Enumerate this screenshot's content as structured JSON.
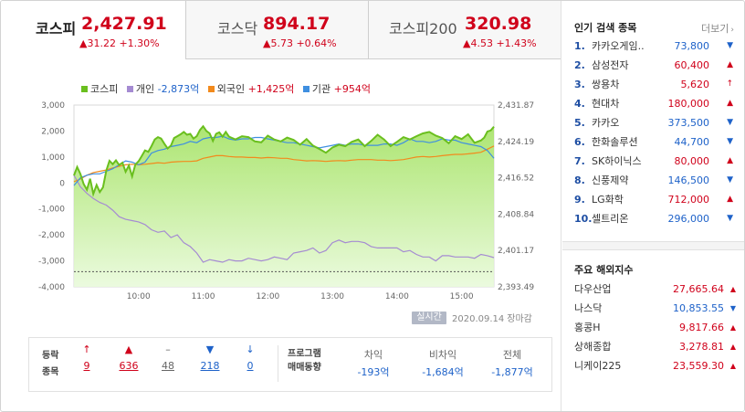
{
  "tabs": [
    {
      "name": "코스피",
      "price": "2,427.91",
      "change": "▲31.22 +1.30%"
    },
    {
      "name": "코스닥",
      "price": "894.17",
      "change": "▲5.73 +0.64%"
    },
    {
      "name": "코스피200",
      "price": "320.98",
      "change": "▲4.53 +1.43%"
    }
  ],
  "legend": [
    {
      "name": "코스피",
      "value": "",
      "color": "#6abf1e"
    },
    {
      "name": "개인",
      "value": "-2,873억",
      "color": "#a58bd2",
      "tone": "neg"
    },
    {
      "name": "외국인",
      "value": "+1,425억",
      "color": "#f28a1c",
      "tone": "pos"
    },
    {
      "name": "기관",
      "value": "+954억",
      "color": "#3f8fe0",
      "tone": "pos"
    }
  ],
  "chart_data": {
    "type": "line",
    "left_axis": {
      "ticks": [
        "3,000",
        "2,000",
        "1,000",
        "0",
        "-1,000",
        "-2,000",
        "-3,000",
        "-4,000"
      ],
      "range": [
        -4000,
        3000
      ]
    },
    "right_axis": {
      "ticks": [
        "2,431.87",
        "2,424.19",
        "2,416.52",
        "2,408.84",
        "2,401.17",
        "2,393.49"
      ],
      "range": [
        2393.49,
        2431.87
      ]
    },
    "x_ticks": [
      "10:00",
      "11:00",
      "12:00",
      "13:00",
      "14:00",
      "15:00"
    ],
    "reference_line": 2396.69,
    "colors": {
      "index": "#6abf1e",
      "individual": "#a58bd2",
      "foreign": "#f28a1c",
      "institution": "#3f8fe0"
    },
    "series": [
      {
        "name": "코스피",
        "axis": "right",
        "times": [
          9.0,
          9.05,
          9.1,
          9.15,
          9.2,
          9.25,
          9.3,
          9.35,
          9.4,
          9.45,
          9.5,
          9.55,
          9.6,
          9.65,
          9.7,
          9.75,
          9.8,
          9.85,
          9.9,
          9.95,
          10.0,
          10.05,
          10.1,
          10.15,
          10.2,
          10.25,
          10.3,
          10.35,
          10.4,
          10.45,
          10.5,
          10.55,
          10.6,
          10.65,
          10.7,
          10.75,
          10.8,
          10.85,
          10.9,
          10.95,
          11.0,
          11.05,
          11.1,
          11.15,
          11.2,
          11.25,
          11.3,
          11.35,
          11.4,
          11.5,
          11.6,
          11.7,
          11.8,
          11.9,
          12.0,
          12.1,
          12.2,
          12.3,
          12.4,
          12.5,
          12.6,
          12.7,
          12.8,
          12.9,
          13.0,
          13.1,
          13.2,
          13.3,
          13.4,
          13.5,
          13.6,
          13.7,
          13.8,
          13.9,
          14.0,
          14.1,
          14.2,
          14.3,
          14.4,
          14.5,
          14.6,
          14.7,
          14.8,
          14.9,
          15.0,
          15.1,
          15.2,
          15.3,
          15.35,
          15.4,
          15.45,
          15.5
        ],
        "values": [
          2417.0,
          2418.8,
          2417.3,
          2415.2,
          2414.0,
          2416.3,
          2413.1,
          2415.0,
          2413.5,
          2414.5,
          2418.0,
          2420.1,
          2419.4,
          2420.2,
          2419.2,
          2419.7,
          2417.8,
          2419.1,
          2416.8,
          2419.3,
          2420.0,
          2421.1,
          2422.3,
          2422.0,
          2423.2,
          2424.6,
          2425.1,
          2424.8,
          2423.7,
          2422.7,
          2423.3,
          2424.9,
          2425.3,
          2425.7,
          2426.2,
          2425.6,
          2425.8,
          2424.8,
          2425.3,
          2426.6,
          2427.4,
          2426.4,
          2425.9,
          2424.3,
          2425.8,
          2426.1,
          2425.2,
          2426.2,
          2425.2,
          2424.6,
          2425.3,
          2425.1,
          2424.2,
          2424.0,
          2425.4,
          2424.6,
          2424.2,
          2425.0,
          2424.5,
          2423.5,
          2424.7,
          2423.3,
          2422.6,
          2421.8,
          2422.9,
          2423.5,
          2423.2,
          2424.1,
          2424.6,
          2423.2,
          2424.3,
          2425.6,
          2424.6,
          2423.2,
          2424.1,
          2425.1,
          2424.6,
          2425.3,
          2425.9,
          2426.2,
          2425.4,
          2424.9,
          2423.8,
          2425.3,
          2424.7,
          2425.7,
          2423.9,
          2424.4,
          2425.0,
          2426.3,
          2426.5,
          2427.3
        ]
      },
      {
        "name": "개인",
        "axis": "left",
        "times": [
          9.0,
          9.1,
          9.2,
          9.3,
          9.4,
          9.5,
          9.6,
          9.7,
          9.8,
          9.9,
          10.0,
          10.1,
          10.2,
          10.3,
          10.4,
          10.5,
          10.6,
          10.7,
          10.8,
          10.9,
          11.0,
          11.1,
          11.2,
          11.3,
          11.4,
          11.5,
          11.6,
          11.7,
          11.8,
          11.9,
          12.0,
          12.1,
          12.2,
          12.3,
          12.4,
          12.5,
          12.6,
          12.7,
          12.8,
          12.9,
          13.0,
          13.1,
          13.2,
          13.3,
          13.4,
          13.5,
          13.6,
          13.7,
          13.8,
          13.9,
          14.0,
          14.1,
          14.2,
          14.3,
          14.4,
          14.5,
          14.6,
          14.7,
          14.8,
          14.9,
          15.0,
          15.1,
          15.2,
          15.3,
          15.4,
          15.5
        ],
        "values": [
          300,
          -150,
          -400,
          -600,
          -750,
          -850,
          -1050,
          -1300,
          -1400,
          -1450,
          -1500,
          -1600,
          -1800,
          -1900,
          -1850,
          -2100,
          -2000,
          -2300,
          -2450,
          -2700,
          -3050,
          -2950,
          -3000,
          -3050,
          -2950,
          -3000,
          -3000,
          -2900,
          -2950,
          -3000,
          -2950,
          -2850,
          -2900,
          -2950,
          -2700,
          -2650,
          -2600,
          -2500,
          -2700,
          -2600,
          -2300,
          -2200,
          -2300,
          -2250,
          -2250,
          -2300,
          -2450,
          -2500,
          -2500,
          -2500,
          -2500,
          -2650,
          -2600,
          -2750,
          -2850,
          -2850,
          -3000,
          -2800,
          -2800,
          -2850,
          -2850,
          -2850,
          -2900,
          -2750,
          -2800,
          -2873
        ]
      },
      {
        "name": "외국인",
        "axis": "left",
        "times": [
          9.0,
          9.1,
          9.2,
          9.3,
          9.4,
          9.5,
          9.6,
          9.7,
          9.8,
          9.9,
          10.0,
          10.1,
          10.2,
          10.3,
          10.4,
          10.5,
          10.6,
          10.7,
          10.8,
          10.9,
          11.0,
          11.1,
          11.2,
          11.3,
          11.4,
          11.5,
          11.6,
          11.7,
          11.8,
          11.9,
          12.0,
          12.1,
          12.2,
          12.3,
          12.4,
          12.5,
          12.6,
          12.7,
          12.8,
          12.9,
          13.0,
          13.1,
          13.2,
          13.3,
          13.4,
          13.5,
          13.6,
          13.7,
          13.8,
          13.9,
          14.0,
          14.1,
          14.2,
          14.3,
          14.4,
          14.5,
          14.6,
          14.7,
          14.8,
          14.9,
          15.0,
          15.1,
          15.2,
          15.3,
          15.4,
          15.5
        ],
        "values": [
          50,
          150,
          300,
          400,
          450,
          500,
          580,
          640,
          700,
          720,
          700,
          720,
          750,
          780,
          760,
          800,
          820,
          830,
          830,
          850,
          950,
          1000,
          1050,
          1050,
          1020,
          1000,
          1000,
          980,
          980,
          960,
          980,
          970,
          950,
          950,
          900,
          880,
          850,
          860,
          850,
          830,
          850,
          860,
          850,
          880,
          900,
          900,
          900,
          880,
          880,
          860,
          880,
          900,
          950,
          1000,
          1020,
          1000,
          1020,
          1050,
          1080,
          1100,
          1100,
          1120,
          1150,
          1180,
          1300,
          1425
        ]
      },
      {
        "name": "기관",
        "axis": "left",
        "times": [
          9.0,
          9.1,
          9.2,
          9.3,
          9.4,
          9.5,
          9.6,
          9.7,
          9.8,
          9.9,
          10.0,
          10.1,
          10.2,
          10.3,
          10.4,
          10.5,
          10.6,
          10.7,
          10.8,
          10.9,
          11.0,
          11.1,
          11.2,
          11.3,
          11.4,
          11.5,
          11.6,
          11.7,
          11.8,
          11.9,
          12.0,
          12.1,
          12.2,
          12.3,
          12.4,
          12.5,
          12.6,
          12.7,
          12.8,
          12.9,
          13.0,
          13.1,
          13.2,
          13.3,
          13.4,
          13.5,
          13.6,
          13.7,
          13.8,
          13.9,
          14.0,
          14.1,
          14.2,
          14.3,
          14.4,
          14.5,
          14.6,
          14.7,
          14.8,
          14.9,
          15.0,
          15.1,
          15.2,
          15.3,
          15.4,
          15.5
        ],
        "values": [
          -100,
          200,
          300,
          350,
          350,
          450,
          550,
          700,
          850,
          800,
          700,
          800,
          1150,
          1250,
          1300,
          1400,
          1450,
          1500,
          1600,
          1550,
          1700,
          1750,
          1750,
          1800,
          1700,
          1650,
          1700,
          1700,
          1750,
          1750,
          1700,
          1650,
          1600,
          1550,
          1550,
          1500,
          1450,
          1400,
          1350,
          1400,
          1450,
          1500,
          1450,
          1500,
          1500,
          1450,
          1450,
          1450,
          1500,
          1500,
          1450,
          1550,
          1700,
          1600,
          1600,
          1550,
          1600,
          1700,
          1650,
          1650,
          1550,
          1500,
          1450,
          1400,
          1250,
          954
        ]
      }
    ]
  },
  "badge": "실시간",
  "date": "2020.09.14",
  "market_status": "장마감",
  "stats": {
    "label1": "등락",
    "label2": "종목",
    "cols": [
      {
        "sym": "↑",
        "val": "9",
        "tone": "red"
      },
      {
        "sym": "▲",
        "val": "636",
        "tone": "red"
      },
      {
        "sym": "–",
        "val": "48",
        "tone": "gray"
      },
      {
        "sym": "▼",
        "val": "218",
        "tone": "blue"
      },
      {
        "sym": "↓",
        "val": "0",
        "tone": "blue"
      }
    ],
    "program_l1": "프로그램",
    "program_l2": "매매동향",
    "program": [
      {
        "head": "차익",
        "val": "-193억"
      },
      {
        "head": "비차익",
        "val": "-1,684억"
      },
      {
        "head": "전체",
        "val": "-1,877억"
      }
    ]
  },
  "popular": {
    "title": "인기 검색 종목",
    "more": "더보기",
    "items": [
      {
        "rank": "1.",
        "name": "카카오게임..",
        "price": "73,800",
        "dir": "▼",
        "tone": "blue"
      },
      {
        "rank": "2.",
        "name": "삼성전자",
        "price": "60,400",
        "dir": "▲",
        "tone": "red"
      },
      {
        "rank": "3.",
        "name": "쌍용차",
        "price": "5,620",
        "dir": "↑",
        "tone": "red"
      },
      {
        "rank": "4.",
        "name": "현대차",
        "price": "180,000",
        "dir": "▲",
        "tone": "red"
      },
      {
        "rank": "5.",
        "name": "카카오",
        "price": "373,500",
        "dir": "▼",
        "tone": "blue"
      },
      {
        "rank": "6.",
        "name": "한화솔루션",
        "price": "44,700",
        "dir": "▼",
        "tone": "blue"
      },
      {
        "rank": "7.",
        "name": "SK하이닉스",
        "price": "80,000",
        "dir": "▲",
        "tone": "red"
      },
      {
        "rank": "8.",
        "name": "신풍제약",
        "price": "146,500",
        "dir": "▼",
        "tone": "blue"
      },
      {
        "rank": "9.",
        "name": "LG화학",
        "price": "712,000",
        "dir": "▲",
        "tone": "red"
      },
      {
        "rank": "10.",
        "name": "셀트리온",
        "price": "296,000",
        "dir": "▼",
        "tone": "blue"
      }
    ]
  },
  "overseas": {
    "title": "주요 해외지수",
    "items": [
      {
        "name": "다우산업",
        "price": "27,665.64",
        "dir": "▲",
        "tone": "red"
      },
      {
        "name": "나스닥",
        "price": "10,853.55",
        "dir": "▼",
        "tone": "blue"
      },
      {
        "name": "홍콩H",
        "price": "9,817.66",
        "dir": "▲",
        "tone": "red"
      },
      {
        "name": "상해종합",
        "price": "3,278.81",
        "dir": "▲",
        "tone": "red"
      },
      {
        "name": "니케이225",
        "price": "23,559.30",
        "dir": "▲",
        "tone": "red"
      }
    ]
  }
}
